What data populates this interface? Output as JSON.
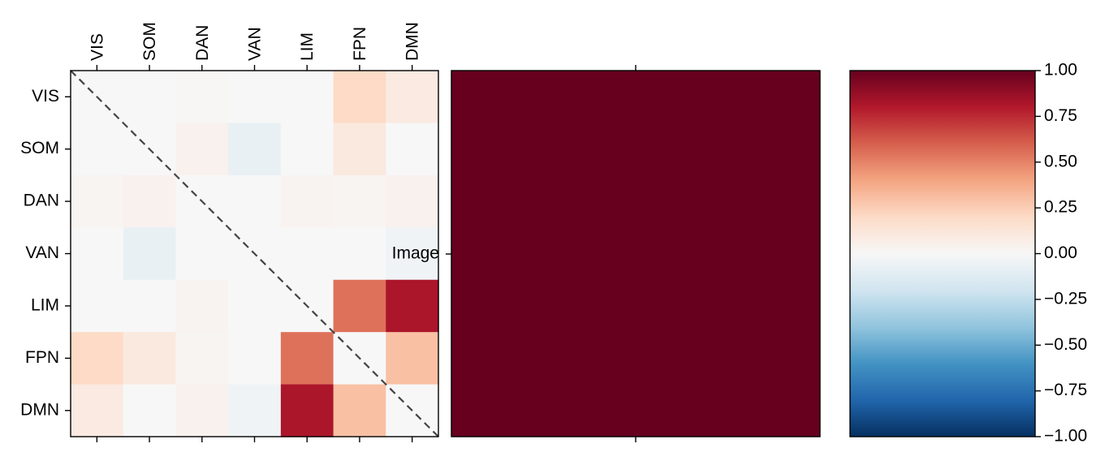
{
  "chart_data": [
    {
      "type": "heatmap",
      "labels": [
        "VIS",
        "SOM",
        "DAN",
        "VAN",
        "LIM",
        "FPN",
        "DMN"
      ],
      "values": [
        [
          0.0,
          0.0,
          0.01,
          0.0,
          0.0,
          0.2,
          0.09
        ],
        [
          0.0,
          0.0,
          0.04,
          -0.08,
          0.0,
          0.1,
          0.0
        ],
        [
          0.02,
          0.04,
          0.0,
          0.0,
          0.03,
          0.02,
          0.04
        ],
        [
          0.0,
          -0.08,
          0.0,
          0.0,
          0.0,
          0.0,
          -0.04
        ],
        [
          0.0,
          0.0,
          0.03,
          0.0,
          0.0,
          0.55,
          0.82
        ],
        [
          0.2,
          0.1,
          0.02,
          0.0,
          0.55,
          0.0,
          0.3
        ],
        [
          0.09,
          0.0,
          0.04,
          -0.04,
          0.82,
          0.3,
          0.0
        ]
      ],
      "diagonal_line": "dashed",
      "x_tick_position": "top"
    },
    {
      "type": "heatmap",
      "yticklabels": [
        "Image"
      ],
      "values": [
        [
          1.0
        ]
      ]
    }
  ],
  "colorbar": {
    "colormap": "RdBu_r",
    "ticks": [
      "1.00",
      "0.75",
      "0.50",
      "0.25",
      "0.00",
      "−0.25",
      "−0.50",
      "−0.75",
      "−1.00"
    ],
    "range": [
      -1,
      1
    ]
  }
}
